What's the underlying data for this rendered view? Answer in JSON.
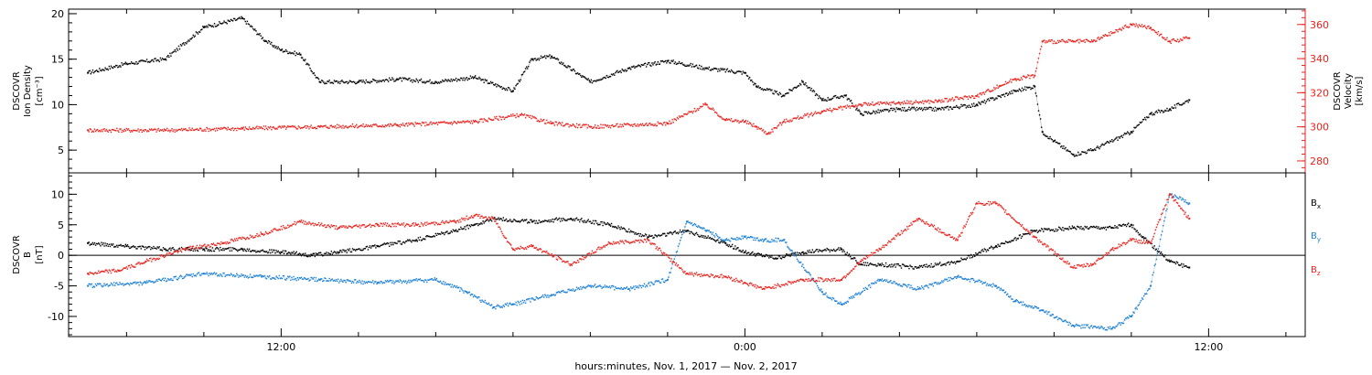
{
  "chart_data": [
    {
      "type": "scatter",
      "panel": "plasma",
      "left_axis": {
        "label_lines": [
          "DSCOVR",
          "Ion Density",
          "[cm⁻³]"
        ],
        "range": [
          2.5,
          20.5
        ],
        "ticks": [
          5,
          10,
          15,
          20
        ]
      },
      "right_axis": {
        "label_lines": [
          "DSCOVR",
          "Velocity",
          "[km/s]"
        ],
        "range": [
          273,
          369
        ],
        "ticks": [
          280,
          300,
          320,
          340,
          360
        ],
        "color": "#e8231e"
      },
      "series": [
        {
          "axis": "left",
          "color": "#000000",
          "x": [
            7.0,
            8.0,
            9.0,
            10.0,
            11.0,
            11.6,
            12.0,
            12.5,
            13.0,
            14.0,
            15.0,
            16.0,
            17.0,
            18.0,
            18.5,
            19.0,
            20.0,
            21.0,
            22.0,
            23.0,
            24.0,
            24.3,
            25.0,
            25.5,
            26.0,
            26.6,
            27.0,
            28.0,
            29.0,
            30.0,
            31.0,
            31.5,
            31.7,
            32.0,
            32.5,
            33.0,
            34.0,
            34.5,
            35.0,
            35.5
          ],
          "y": [
            13.5,
            14.5,
            15.0,
            18.5,
            19.5,
            17.0,
            16.0,
            15.5,
            12.5,
            12.5,
            12.8,
            12.5,
            13.0,
            11.5,
            15.0,
            15.3,
            12.5,
            14.0,
            14.8,
            14.0,
            13.5,
            12.0,
            11.0,
            12.5,
            10.5,
            11.0,
            9.0,
            9.5,
            9.5,
            10.0,
            11.5,
            12.0,
            7.0,
            6.0,
            4.5,
            5.0,
            7.0,
            9.0,
            9.5,
            10.5
          ]
        },
        {
          "axis": "right",
          "color": "#e8231e",
          "x": [
            7.0,
            9.0,
            11.0,
            13.0,
            15.0,
            17.0,
            18.2,
            19.0,
            20.0,
            22.0,
            23.0,
            23.5,
            24.0,
            24.3,
            24.6,
            25.0,
            26.0,
            27.0,
            28.0,
            29.0,
            30.0,
            30.6,
            31.0,
            31.5,
            31.7,
            32.5,
            33.0,
            34.0,
            34.5,
            35.0,
            35.5
          ],
          "y": [
            298,
            298,
            299,
            300,
            301,
            303,
            307,
            302,
            300,
            302,
            313,
            304,
            303,
            300,
            296,
            303,
            309,
            313,
            314,
            315,
            318,
            324,
            328,
            330,
            350,
            350,
            350,
            360,
            358,
            350,
            352
          ]
        }
      ]
    },
    {
      "type": "scatter",
      "panel": "magnetic-field",
      "left_axis": {
        "label_lines": [
          "DSCOVR",
          "B",
          "[nT]"
        ],
        "range": [
          -13.3,
          13.5
        ],
        "ticks": [
          -10,
          -5,
          0,
          5,
          10
        ]
      },
      "zero_line": true,
      "series": [
        {
          "name": "Bx",
          "color": "#000000",
          "x": [
            7.0,
            8.0,
            9.0,
            10.0,
            11.0,
            12.0,
            12.8,
            13.5,
            14.5,
            15.5,
            16.5,
            17.0,
            17.5,
            18.5,
            19.5,
            20.5,
            21.5,
            22.5,
            23.5,
            24.0,
            24.8,
            25.5,
            26.5,
            27.0,
            27.5,
            28.5,
            29.5,
            30.5,
            31.5,
            32.5,
            33.5,
            34.0,
            34.3,
            35.0,
            35.5
          ],
          "y": [
            2.0,
            1.5,
            1.0,
            1.0,
            1.0,
            0.5,
            0.0,
            0.5,
            1.5,
            2.5,
            4.0,
            5.0,
            6.0,
            5.5,
            6.0,
            5.0,
            3.0,
            4.0,
            2.0,
            0.5,
            -0.5,
            0.5,
            1.0,
            -1.5,
            -1.5,
            -2.0,
            -1.0,
            1.5,
            4.0,
            4.5,
            4.5,
            5.0,
            3.0,
            -1.0,
            -2.0
          ]
        },
        {
          "name": "By",
          "color": "#1b7fd4",
          "x": [
            7.0,
            8.5,
            10.0,
            11.5,
            13.0,
            14.5,
            16.0,
            16.8,
            17.5,
            18.0,
            19.0,
            20.0,
            21.0,
            22.0,
            22.5,
            23.0,
            23.5,
            24.0,
            24.5,
            25.0,
            26.0,
            26.5,
            27.5,
            28.5,
            29.5,
            30.5,
            31.0,
            31.7,
            32.5,
            33.5,
            34.0,
            34.5,
            35.0,
            35.5
          ],
          "y": [
            -5.0,
            -4.5,
            -3.0,
            -3.5,
            -4.0,
            -4.5,
            -4.0,
            -6.0,
            -8.5,
            -8.0,
            -6.5,
            -5.0,
            -5.5,
            -4.0,
            5.5,
            4.0,
            2.5,
            3.0,
            2.5,
            2.5,
            -6.0,
            -8.0,
            -4.0,
            -5.5,
            -3.5,
            -5.0,
            -7.5,
            -9.0,
            -11.5,
            -12.0,
            -10.0,
            -5.0,
            10.0,
            8.5
          ]
        },
        {
          "name": "Bz",
          "color": "#e8231e",
          "x": [
            7.0,
            7.8,
            8.5,
            9.5,
            10.5,
            11.5,
            12.5,
            13.5,
            14.5,
            15.5,
            16.5,
            17.0,
            17.5,
            18.0,
            18.5,
            19.5,
            20.5,
            21.5,
            22.5,
            23.5,
            24.0,
            24.5,
            25.5,
            26.5,
            27.0,
            27.5,
            28.5,
            29.5,
            30.0,
            30.5,
            31.5,
            32.5,
            33.0,
            33.5,
            34.0,
            34.5,
            35.0,
            35.5
          ],
          "y": [
            -3.0,
            -2.5,
            -1.0,
            1.0,
            2.0,
            3.5,
            5.5,
            4.5,
            5.0,
            5.0,
            5.5,
            6.5,
            6.0,
            1.0,
            1.5,
            -1.5,
            2.0,
            2.5,
            -3.0,
            -3.5,
            -4.5,
            -5.5,
            -4.0,
            -4.0,
            -1.0,
            1.0,
            6.0,
            2.5,
            8.5,
            8.5,
            3.0,
            -2.0,
            -1.5,
            1.0,
            2.5,
            2.0,
            10.0,
            6.0
          ]
        }
      ],
      "legend": {
        "placement": "right-outside",
        "items": [
          {
            "text": "B",
            "sub": "x",
            "color": "#000000"
          },
          {
            "text": "B",
            "sub": "y",
            "color": "#1b7fd4"
          },
          {
            "text": "B",
            "sub": "z",
            "color": "#e8231e"
          }
        ]
      }
    }
  ],
  "x_axis": {
    "range_hours": [
      6.5,
      38.5
    ],
    "major_ticks": [
      12,
      24,
      36
    ],
    "major_labels": [
      "12:00",
      "0:00",
      "12:00"
    ],
    "minor_step_hours": 2,
    "title": "hours:minutes, Nov.  1, 2017 — Nov.  2, 2017"
  }
}
